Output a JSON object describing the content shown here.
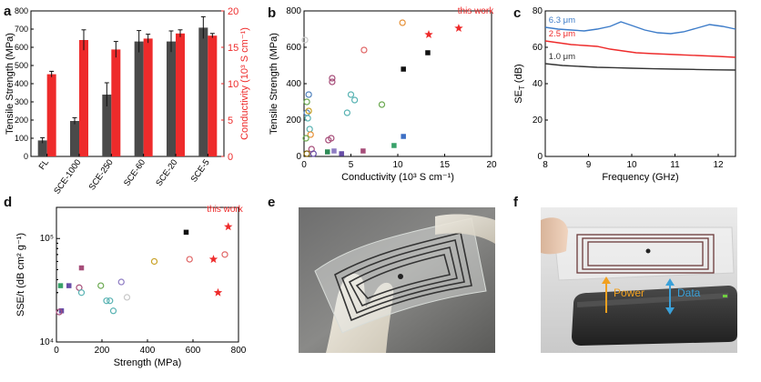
{
  "panels": {
    "a": "a",
    "b": "b",
    "c": "c",
    "d": "d",
    "e": "e",
    "f": "f"
  },
  "chart_data": [
    {
      "id": "a",
      "type": "bar",
      "categories": [
        "FL",
        "SCE-1000",
        "SCE-250",
        "SCE-60",
        "SCE-20",
        "SCE-5"
      ],
      "series": [
        {
          "values": [
            88,
            195,
            340,
            632,
            632,
            708
          ],
          "errors": [
            15,
            18,
            65,
            60,
            58,
            60
          ],
          "color": "#4a4a4a",
          "axis": "left"
        },
        {
          "values": [
            11.3,
            16.0,
            14.7,
            16.2,
            16.9,
            16.6
          ],
          "errors": [
            0.4,
            1.4,
            1.1,
            0.6,
            0.5,
            0.3
          ],
          "color": "#ee2b2b",
          "axis": "right"
        }
      ],
      "ylabel": "Tensile Strength (MPa)",
      "ylabel_right": "Conductivity (10³ S cm⁻¹)",
      "ylim": [
        0,
        800
      ],
      "yticks": [
        "0",
        "100",
        "200",
        "300",
        "400",
        "500",
        "600",
        "700",
        "800"
      ],
      "ylim_right": [
        0,
        20
      ],
      "yticks_right": [
        "0",
        "5",
        "10",
        "15",
        "20"
      ]
    },
    {
      "id": "b",
      "type": "scatter",
      "xlabel": "Conductivity (10³ S cm⁻¹)",
      "ylabel": "Tensile Strength (MPa)",
      "xlim": [
        0,
        20
      ],
      "ylim": [
        0,
        800
      ],
      "xticks": [
        "0",
        "5",
        "10",
        "15",
        "20"
      ],
      "yticks": [
        "0",
        "200",
        "400",
        "600",
        "800"
      ],
      "annotation": "this work",
      "points": [
        {
          "x": 0.1,
          "y": 640,
          "s": "circle",
          "c": "#c8c8c8"
        },
        {
          "x": 0.3,
          "y": 300,
          "s": "circle",
          "c": "#6aa84f"
        },
        {
          "x": 0.3,
          "y": 240,
          "s": "circle",
          "c": "#4f81bd"
        },
        {
          "x": 0.4,
          "y": 210,
          "s": "circle",
          "c": "#59b3b3"
        },
        {
          "x": 0.5,
          "y": 340,
          "s": "circle",
          "c": "#4f81bd"
        },
        {
          "x": 0.6,
          "y": 150,
          "s": "circle",
          "c": "#59b3b3"
        },
        {
          "x": 0.7,
          "y": 120,
          "s": "circle",
          "c": "#e69138"
        },
        {
          "x": 0.2,
          "y": 100,
          "s": "circle",
          "c": "#6aa84f"
        },
        {
          "x": 0.8,
          "y": 40,
          "s": "circle",
          "c": "#a64d79"
        },
        {
          "x": 0.3,
          "y": 15,
          "s": "circle",
          "c": "#7f6000"
        },
        {
          "x": 1.0,
          "y": 15,
          "s": "circle",
          "c": "#674ea7"
        },
        {
          "x": 0.5,
          "y": 250,
          "s": "circle",
          "c": "#c9a227"
        },
        {
          "x": 2.6,
          "y": 90,
          "s": "circle",
          "c": "#a64d79"
        },
        {
          "x": 2.9,
          "y": 100,
          "s": "circle",
          "c": "#a64d79"
        },
        {
          "x": 3.0,
          "y": 410,
          "s": "circle",
          "c": "#a64d79"
        },
        {
          "x": 3.0,
          "y": 430,
          "s": "circle",
          "c": "#a64d79"
        },
        {
          "x": 2.5,
          "y": 25,
          "s": "square",
          "c": "#2e8b57"
        },
        {
          "x": 3.2,
          "y": 30,
          "s": "square",
          "c": "#8e7cc3"
        },
        {
          "x": 4.0,
          "y": 15,
          "s": "square",
          "c": "#674ea7"
        },
        {
          "x": 4.6,
          "y": 240,
          "s": "circle",
          "c": "#59b3b3"
        },
        {
          "x": 5.0,
          "y": 340,
          "s": "circle",
          "c": "#59b3b3"
        },
        {
          "x": 5.4,
          "y": 310,
          "s": "circle",
          "c": "#59b3b3"
        },
        {
          "x": 6.3,
          "y": 30,
          "s": "square",
          "c": "#a64d79"
        },
        {
          "x": 6.4,
          "y": 585,
          "s": "circle",
          "c": "#e06666"
        },
        {
          "x": 8.3,
          "y": 285,
          "s": "circle",
          "c": "#6aa84f"
        },
        {
          "x": 9.6,
          "y": 60,
          "s": "square",
          "c": "#38a169"
        },
        {
          "x": 10.5,
          "y": 735,
          "s": "circle",
          "c": "#e69138"
        },
        {
          "x": 10.6,
          "y": 480,
          "s": "square",
          "c": "#111111"
        },
        {
          "x": 10.6,
          "y": 110,
          "s": "square",
          "c": "#3c6fc4"
        },
        {
          "x": 13.2,
          "y": 570,
          "s": "square",
          "c": "#111111"
        },
        {
          "x": 13.3,
          "y": 670,
          "s": "star",
          "c": "#ee2b2b"
        },
        {
          "x": 16.5,
          "y": 705,
          "s": "star",
          "c": "#ee2b2b"
        }
      ]
    },
    {
      "id": "c",
      "type": "line",
      "xlabel": "Frequency (GHz)",
      "ylabel": "SE_T (dB)",
      "xlim": [
        8,
        12.4
      ],
      "ylim": [
        0,
        80
      ],
      "xticks": [
        "8",
        "9",
        "10",
        "11",
        "12"
      ],
      "yticks": [
        "0",
        "20",
        "40",
        "60",
        "80"
      ],
      "series": [
        {
          "name": "6.3 μm",
          "color": "#3d7cc9",
          "x": [
            8.0,
            8.3,
            8.6,
            8.9,
            9.2,
            9.5,
            9.75,
            10.0,
            10.3,
            10.6,
            10.9,
            11.2,
            11.5,
            11.8,
            12.1,
            12.4
          ],
          "y": [
            71,
            70,
            69.5,
            69,
            70,
            71.5,
            74,
            72,
            69.5,
            68,
            67.5,
            68.5,
            70.5,
            72.5,
            71.5,
            70
          ]
        },
        {
          "name": "2.5 μm",
          "color": "#ee2b2b",
          "x": [
            8.0,
            8.3,
            8.6,
            8.9,
            9.2,
            9.5,
            9.8,
            10.1,
            10.5,
            11.0,
            11.5,
            12.0,
            12.4
          ],
          "y": [
            63.5,
            62.5,
            61.5,
            61,
            60.5,
            59,
            58,
            57,
            56.5,
            56,
            55.5,
            55,
            54.5
          ]
        },
        {
          "name": "1.0 μm",
          "color": "#333333",
          "x": [
            8.0,
            8.4,
            8.8,
            9.2,
            9.6,
            10.0,
            10.5,
            11.0,
            11.5,
            12.0,
            12.4
          ],
          "y": [
            51,
            50,
            49.5,
            49,
            48.8,
            48.5,
            48.2,
            48,
            47.8,
            47.6,
            47.5
          ]
        }
      ]
    },
    {
      "id": "d",
      "type": "scatter",
      "xlabel": "Strength (MPa)",
      "ylabel": "SSE/t (dB cm² g⁻¹)",
      "xlim": [
        0,
        800
      ],
      "ylog": true,
      "ylim": [
        10000,
        200000
      ],
      "xticks": [
        "0",
        "200",
        "400",
        "600",
        "800"
      ],
      "yticks": [
        "10⁴",
        "10⁵"
      ],
      "annotation": "this work",
      "points": [
        {
          "x": 18,
          "y": 35000,
          "s": "square",
          "c": "#38a169"
        },
        {
          "x": 22,
          "y": 20000,
          "s": "square",
          "c": "#674ea7"
        },
        {
          "x": 12,
          "y": 19500,
          "s": "circle",
          "c": "#a64d79"
        },
        {
          "x": 55,
          "y": 35000,
          "s": "square",
          "c": "#674ea7"
        },
        {
          "x": 100,
          "y": 33500,
          "s": "circle",
          "c": "#a64d79"
        },
        {
          "x": 110,
          "y": 30000,
          "s": "circle",
          "c": "#59b3b3"
        },
        {
          "x": 110,
          "y": 52000,
          "s": "square",
          "c": "#a64d79"
        },
        {
          "x": 195,
          "y": 35000,
          "s": "circle",
          "c": "#6aa84f"
        },
        {
          "x": 220,
          "y": 25000,
          "s": "circle",
          "c": "#59b3b3"
        },
        {
          "x": 235,
          "y": 25000,
          "s": "circle",
          "c": "#59b3b3"
        },
        {
          "x": 250,
          "y": 20000,
          "s": "circle",
          "c": "#59b3b3"
        },
        {
          "x": 285,
          "y": 38000,
          "s": "circle",
          "c": "#8e7cc3"
        },
        {
          "x": 310,
          "y": 27000,
          "s": "circle",
          "c": "#c8c8c8"
        },
        {
          "x": 430,
          "y": 60000,
          "s": "circle",
          "c": "#c9a227"
        },
        {
          "x": 570,
          "y": 115000,
          "s": "square",
          "c": "#111111"
        },
        {
          "x": 585,
          "y": 63000,
          "s": "circle",
          "c": "#e06666"
        },
        {
          "x": 690,
          "y": 63000,
          "s": "star",
          "c": "#ee2b2b"
        },
        {
          "x": 710,
          "y": 30000,
          "s": "star",
          "c": "#ee2b2b"
        },
        {
          "x": 740,
          "y": 70000,
          "s": "circle",
          "c": "#e06666"
        },
        {
          "x": 755,
          "y": 130000,
          "s": "star",
          "c": "#ee2b2b"
        }
      ]
    }
  ],
  "c_labels": {
    "s1": "6.3 μm",
    "s2": "2.5 μm",
    "s3": "1.0 μm"
  },
  "photo_f": {
    "power": "Power",
    "data": "Data"
  }
}
